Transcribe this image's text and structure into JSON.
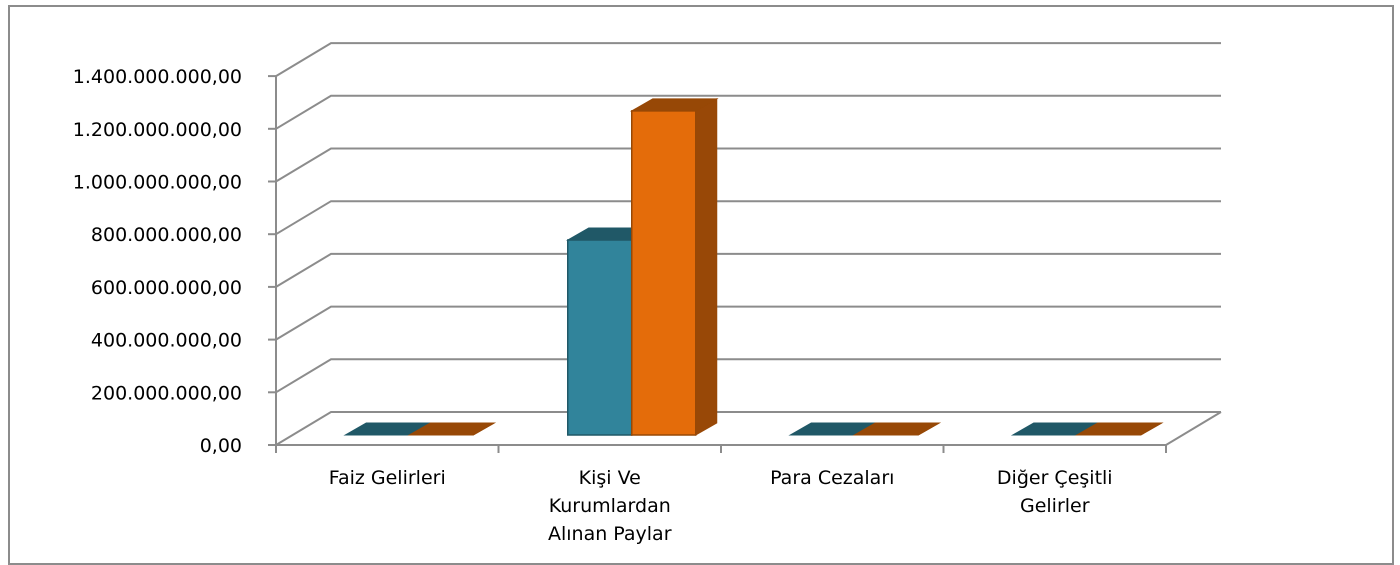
{
  "chart_data": {
    "type": "bar",
    "title": "",
    "xlabel": "",
    "ylabel": "",
    "ylim": [
      0,
      1400000000
    ],
    "ytick_step": 200000000,
    "ytick_labels": [
      "0,00",
      "200.000.000,00",
      "400.000.000,00",
      "600.000.000,00",
      "800.000.000,00",
      "1.000.000.000,00",
      "1.200.000.000,00",
      "1.400.000.000,00"
    ],
    "categories": [
      [
        "Faiz Gelirleri"
      ],
      [
        "Kişi Ve",
        "Kurumlardan",
        "Alınan Paylar"
      ],
      [
        "Para Cezaları"
      ],
      [
        "Diğer Çeşitli",
        "Gelirler"
      ]
    ],
    "series": [
      {
        "values": [
          0,
          740000000,
          0,
          0
        ]
      },
      {
        "values": [
          0,
          1230000000,
          0,
          0
        ]
      }
    ],
    "grid": true,
    "legend": "none",
    "colors": {
      "series1_front": "#31849B",
      "series1_top": "#205867",
      "series1_side": "#215968",
      "series2_front": "#E46C0A",
      "series2_top": "#974806",
      "series2_side": "#984807",
      "grid": "#8c8c8c",
      "axis": "#8c8c8c"
    }
  }
}
